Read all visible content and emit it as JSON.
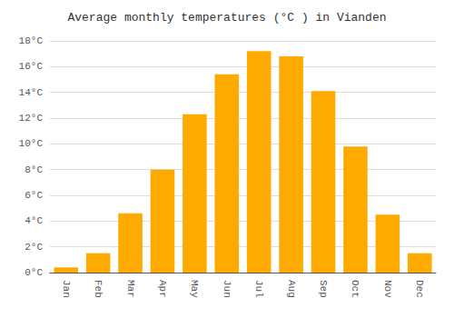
{
  "chart_data": {
    "type": "bar",
    "title": "Average monthly temperatures (°C ) in Vianden",
    "categories": [
      "Jan",
      "Feb",
      "Mar",
      "Apr",
      "May",
      "Jun",
      "Jul",
      "Aug",
      "Sep",
      "Oct",
      "Nov",
      "Dec"
    ],
    "values": [
      0.4,
      1.5,
      4.6,
      8.0,
      12.3,
      15.4,
      17.2,
      16.8,
      14.1,
      9.8,
      4.5,
      1.5
    ],
    "color": "#FFAA00",
    "ylim": [
      0,
      18
    ],
    "yticks": [
      {
        "value": 0,
        "label": "0°C"
      },
      {
        "value": 2,
        "label": "2°C"
      },
      {
        "value": 4,
        "label": "4°C"
      },
      {
        "value": 6,
        "label": "6°C"
      },
      {
        "value": 8,
        "label": "8°C"
      },
      {
        "value": 10,
        "label": "10°C"
      },
      {
        "value": 12,
        "label": "12°C"
      },
      {
        "value": 14,
        "label": "14°C"
      },
      {
        "value": 16,
        "label": "16°C"
      },
      {
        "value": 18,
        "label": "18°C"
      }
    ],
    "grid": true
  }
}
